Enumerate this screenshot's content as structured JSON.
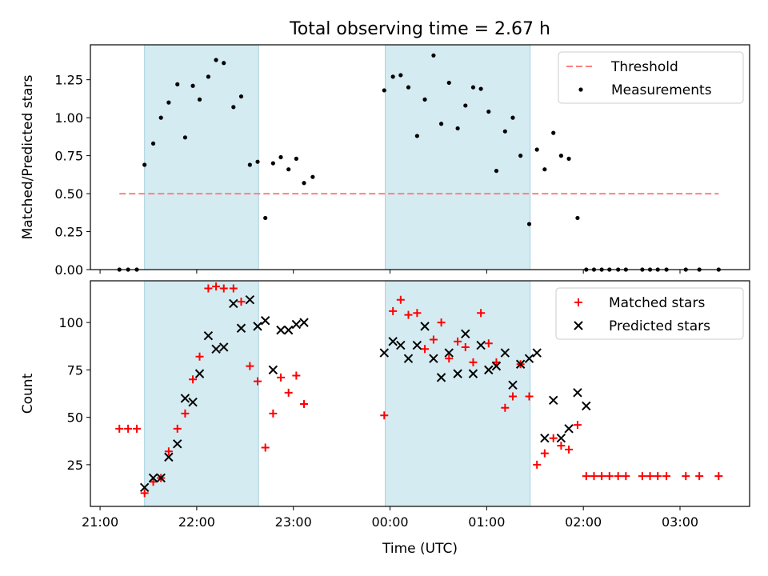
{
  "figure": {
    "title": "Total observing time = 2.67 h",
    "xlabel": "Time (UTC)"
  },
  "chart_data": [
    {
      "type": "scatter",
      "ylabel": "Matched/Predicted stars",
      "xlim": [
        -0.1,
        6.72
      ],
      "ylim": [
        0,
        1.48
      ],
      "x_ticks": [
        0,
        1,
        2,
        3,
        4,
        5,
        6,
        7
      ],
      "x_tick_labels": [
        "21:00",
        "22:00",
        "23:00",
        "00:00",
        "01:00",
        "02:00",
        "03:00",
        ""
      ],
      "y_ticks": [
        0,
        0.25,
        0.5,
        0.75,
        1.0,
        1.25
      ],
      "y_tick_labels": [
        "0.00",
        "0.25",
        "0.50",
        "0.75",
        "1.00",
        "1.25"
      ],
      "shaded_intervals": [
        [
          0.46,
          1.64
        ],
        [
          2.95,
          4.45
        ]
      ],
      "shade_color": "#d4ebf1",
      "grid": false,
      "legend_position": "top-right",
      "series": [
        {
          "name": "Threshold",
          "kind": "dashed-line",
          "color": "#ff8080",
          "x": [
            0.2,
            6.4
          ],
          "y": [
            0.5,
            0.5
          ]
        },
        {
          "name": "Measurements",
          "kind": "dots",
          "color": "#000000",
          "x": [
            0.2,
            0.29,
            0.38,
            0.46,
            0.55,
            0.63,
            0.71,
            0.8,
            0.88,
            0.96,
            1.03,
            1.12,
            1.2,
            1.28,
            1.38,
            1.46,
            1.55,
            1.63,
            1.71,
            1.79,
            1.87,
            1.95,
            2.03,
            2.11,
            2.2,
            2.94,
            3.03,
            3.11,
            3.19,
            3.28,
            3.36,
            3.45,
            3.53,
            3.61,
            3.7,
            3.78,
            3.86,
            3.94,
            4.02,
            4.1,
            4.19,
            4.27,
            4.35,
            4.44,
            4.52,
            4.6,
            4.69,
            4.77,
            4.85,
            4.94,
            5.03,
            5.11,
            5.19,
            5.27,
            5.36,
            5.44,
            5.61,
            5.69,
            5.77,
            5.86,
            6.06,
            6.2,
            6.4
          ],
          "y": [
            0,
            0,
            0,
            0.69,
            0.83,
            1.0,
            1.1,
            1.22,
            0.87,
            1.21,
            1.12,
            1.27,
            1.38,
            1.36,
            1.07,
            1.14,
            0.69,
            0.71,
            0.34,
            0.7,
            0.74,
            0.66,
            0.73,
            0.57,
            0.61,
            1.18,
            1.27,
            1.28,
            1.2,
            0.88,
            1.12,
            1.41,
            0.96,
            1.23,
            0.93,
            1.08,
            1.2,
            1.19,
            1.04,
            0.65,
            0.91,
            1.0,
            0.75,
            0.3,
            0.79,
            0.66,
            0.9,
            0.75,
            0.73,
            0.34,
            0,
            0,
            0,
            0,
            0,
            0,
            0,
            0,
            0,
            0,
            0,
            0,
            0
          ]
        }
      ]
    },
    {
      "type": "scatter",
      "ylabel": "Count",
      "xlim": [
        -0.1,
        6.72
      ],
      "ylim": [
        3,
        122
      ],
      "x_ticks": [
        0,
        1,
        2,
        3,
        4,
        5,
        6,
        7
      ],
      "x_tick_labels": [
        "21:00",
        "22:00",
        "23:00",
        "00:00",
        "01:00",
        "02:00",
        "03:00",
        ""
      ],
      "y_ticks": [
        25,
        50,
        75,
        100
      ],
      "y_tick_labels": [
        "25",
        "50",
        "75",
        "100"
      ],
      "shaded_intervals": [
        [
          0.46,
          1.64
        ],
        [
          2.95,
          4.45
        ]
      ],
      "shade_color": "#d4ebf1",
      "grid": false,
      "legend_position": "top-right",
      "series": [
        {
          "name": "Matched stars",
          "kind": "plus",
          "color": "#ff0000",
          "x": [
            0.2,
            0.29,
            0.38,
            0.46,
            0.55,
            0.63,
            0.71,
            0.8,
            0.88,
            0.96,
            1.03,
            1.12,
            1.2,
            1.28,
            1.38,
            1.46,
            1.55,
            1.63,
            1.71,
            1.79,
            1.87,
            1.95,
            2.03,
            2.11,
            2.94,
            3.03,
            3.11,
            3.19,
            3.28,
            3.36,
            3.45,
            3.53,
            3.61,
            3.7,
            3.78,
            3.86,
            3.94,
            4.02,
            4.1,
            4.19,
            4.27,
            4.35,
            4.44,
            4.52,
            4.6,
            4.69,
            4.77,
            4.85,
            4.94,
            5.03,
            5.11,
            5.19,
            5.27,
            5.36,
            5.44,
            5.61,
            5.69,
            5.77,
            5.86,
            6.06,
            6.2,
            6.4
          ],
          "y": [
            44,
            44,
            44,
            10,
            16,
            18,
            32,
            44,
            52,
            70,
            82,
            118,
            119,
            118,
            118,
            111,
            77,
            69,
            34,
            52,
            71,
            63,
            72,
            57,
            51,
            106,
            112,
            104,
            105,
            86,
            91,
            100,
            81,
            90,
            87,
            79,
            105,
            89,
            79,
            55,
            61,
            78,
            61,
            25,
            31,
            39,
            35,
            33,
            46,
            19,
            19,
            19,
            19,
            19,
            19,
            19,
            19,
            19,
            19,
            19,
            19,
            19
          ]
        },
        {
          "name": "Predicted stars",
          "kind": "cross",
          "color": "#000000",
          "x": [
            0.46,
            0.55,
            0.63,
            0.71,
            0.8,
            0.88,
            0.96,
            1.03,
            1.12,
            1.2,
            1.28,
            1.38,
            1.46,
            1.55,
            1.63,
            1.71,
            1.79,
            1.87,
            1.95,
            2.03,
            2.11,
            2.94,
            3.03,
            3.11,
            3.19,
            3.28,
            3.36,
            3.45,
            3.53,
            3.61,
            3.7,
            3.78,
            3.86,
            3.94,
            4.02,
            4.1,
            4.19,
            4.27,
            4.35,
            4.44,
            4.52,
            4.6,
            4.69,
            4.77,
            4.85,
            4.94,
            5.03
          ],
          "y": [
            13,
            18,
            18,
            29,
            36,
            60,
            58,
            73,
            93,
            86,
            87,
            110,
            97,
            112,
            98,
            101,
            75,
            96,
            96,
            99,
            100,
            84,
            90,
            88,
            81,
            88,
            98,
            81,
            71,
            84,
            73,
            94,
            73,
            88,
            75,
            77,
            84,
            67,
            78,
            81,
            84,
            39,
            59,
            39,
            44,
            63,
            56
          ]
        }
      ]
    }
  ]
}
